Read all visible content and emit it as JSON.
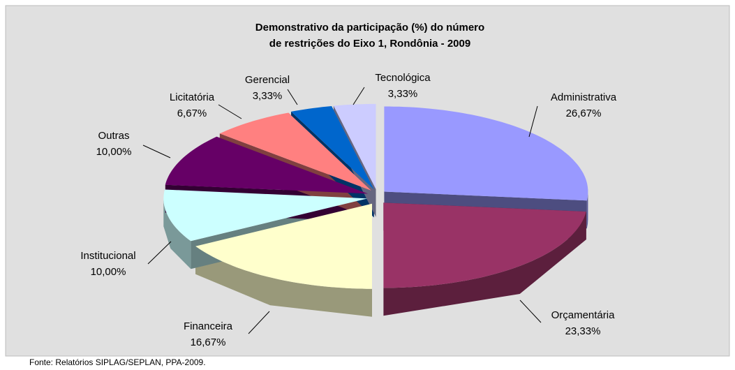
{
  "chart_data": {
    "type": "pie",
    "title": [
      "Demonstrativo da participação (%) do número",
      "de restrições do Eixo 1, Rondônia - 2009"
    ],
    "categories": [
      "Administrativa",
      "Orçamentária",
      "Financeira",
      "Institucional",
      "Outras",
      "Licitatória",
      "Gerencial",
      "Tecnológica"
    ],
    "values": [
      26.67,
      23.33,
      16.67,
      10,
      10,
      6.67,
      3.33,
      3.33
    ],
    "value_labels": [
      "26,67%",
      "23,33%",
      "16,67%",
      "10,00%",
      "10,00%",
      "6,67%",
      "3,33%",
      "3,33%"
    ],
    "colors": [
      "#9999ff",
      "#993366",
      "#ffffcc",
      "#ccffff",
      "#660066",
      "#ff8080",
      "#0066cc",
      "#ccccff"
    ],
    "source": "Fonte: Relatórios SIPLAG/SEPLAN, PPA-2009."
  }
}
